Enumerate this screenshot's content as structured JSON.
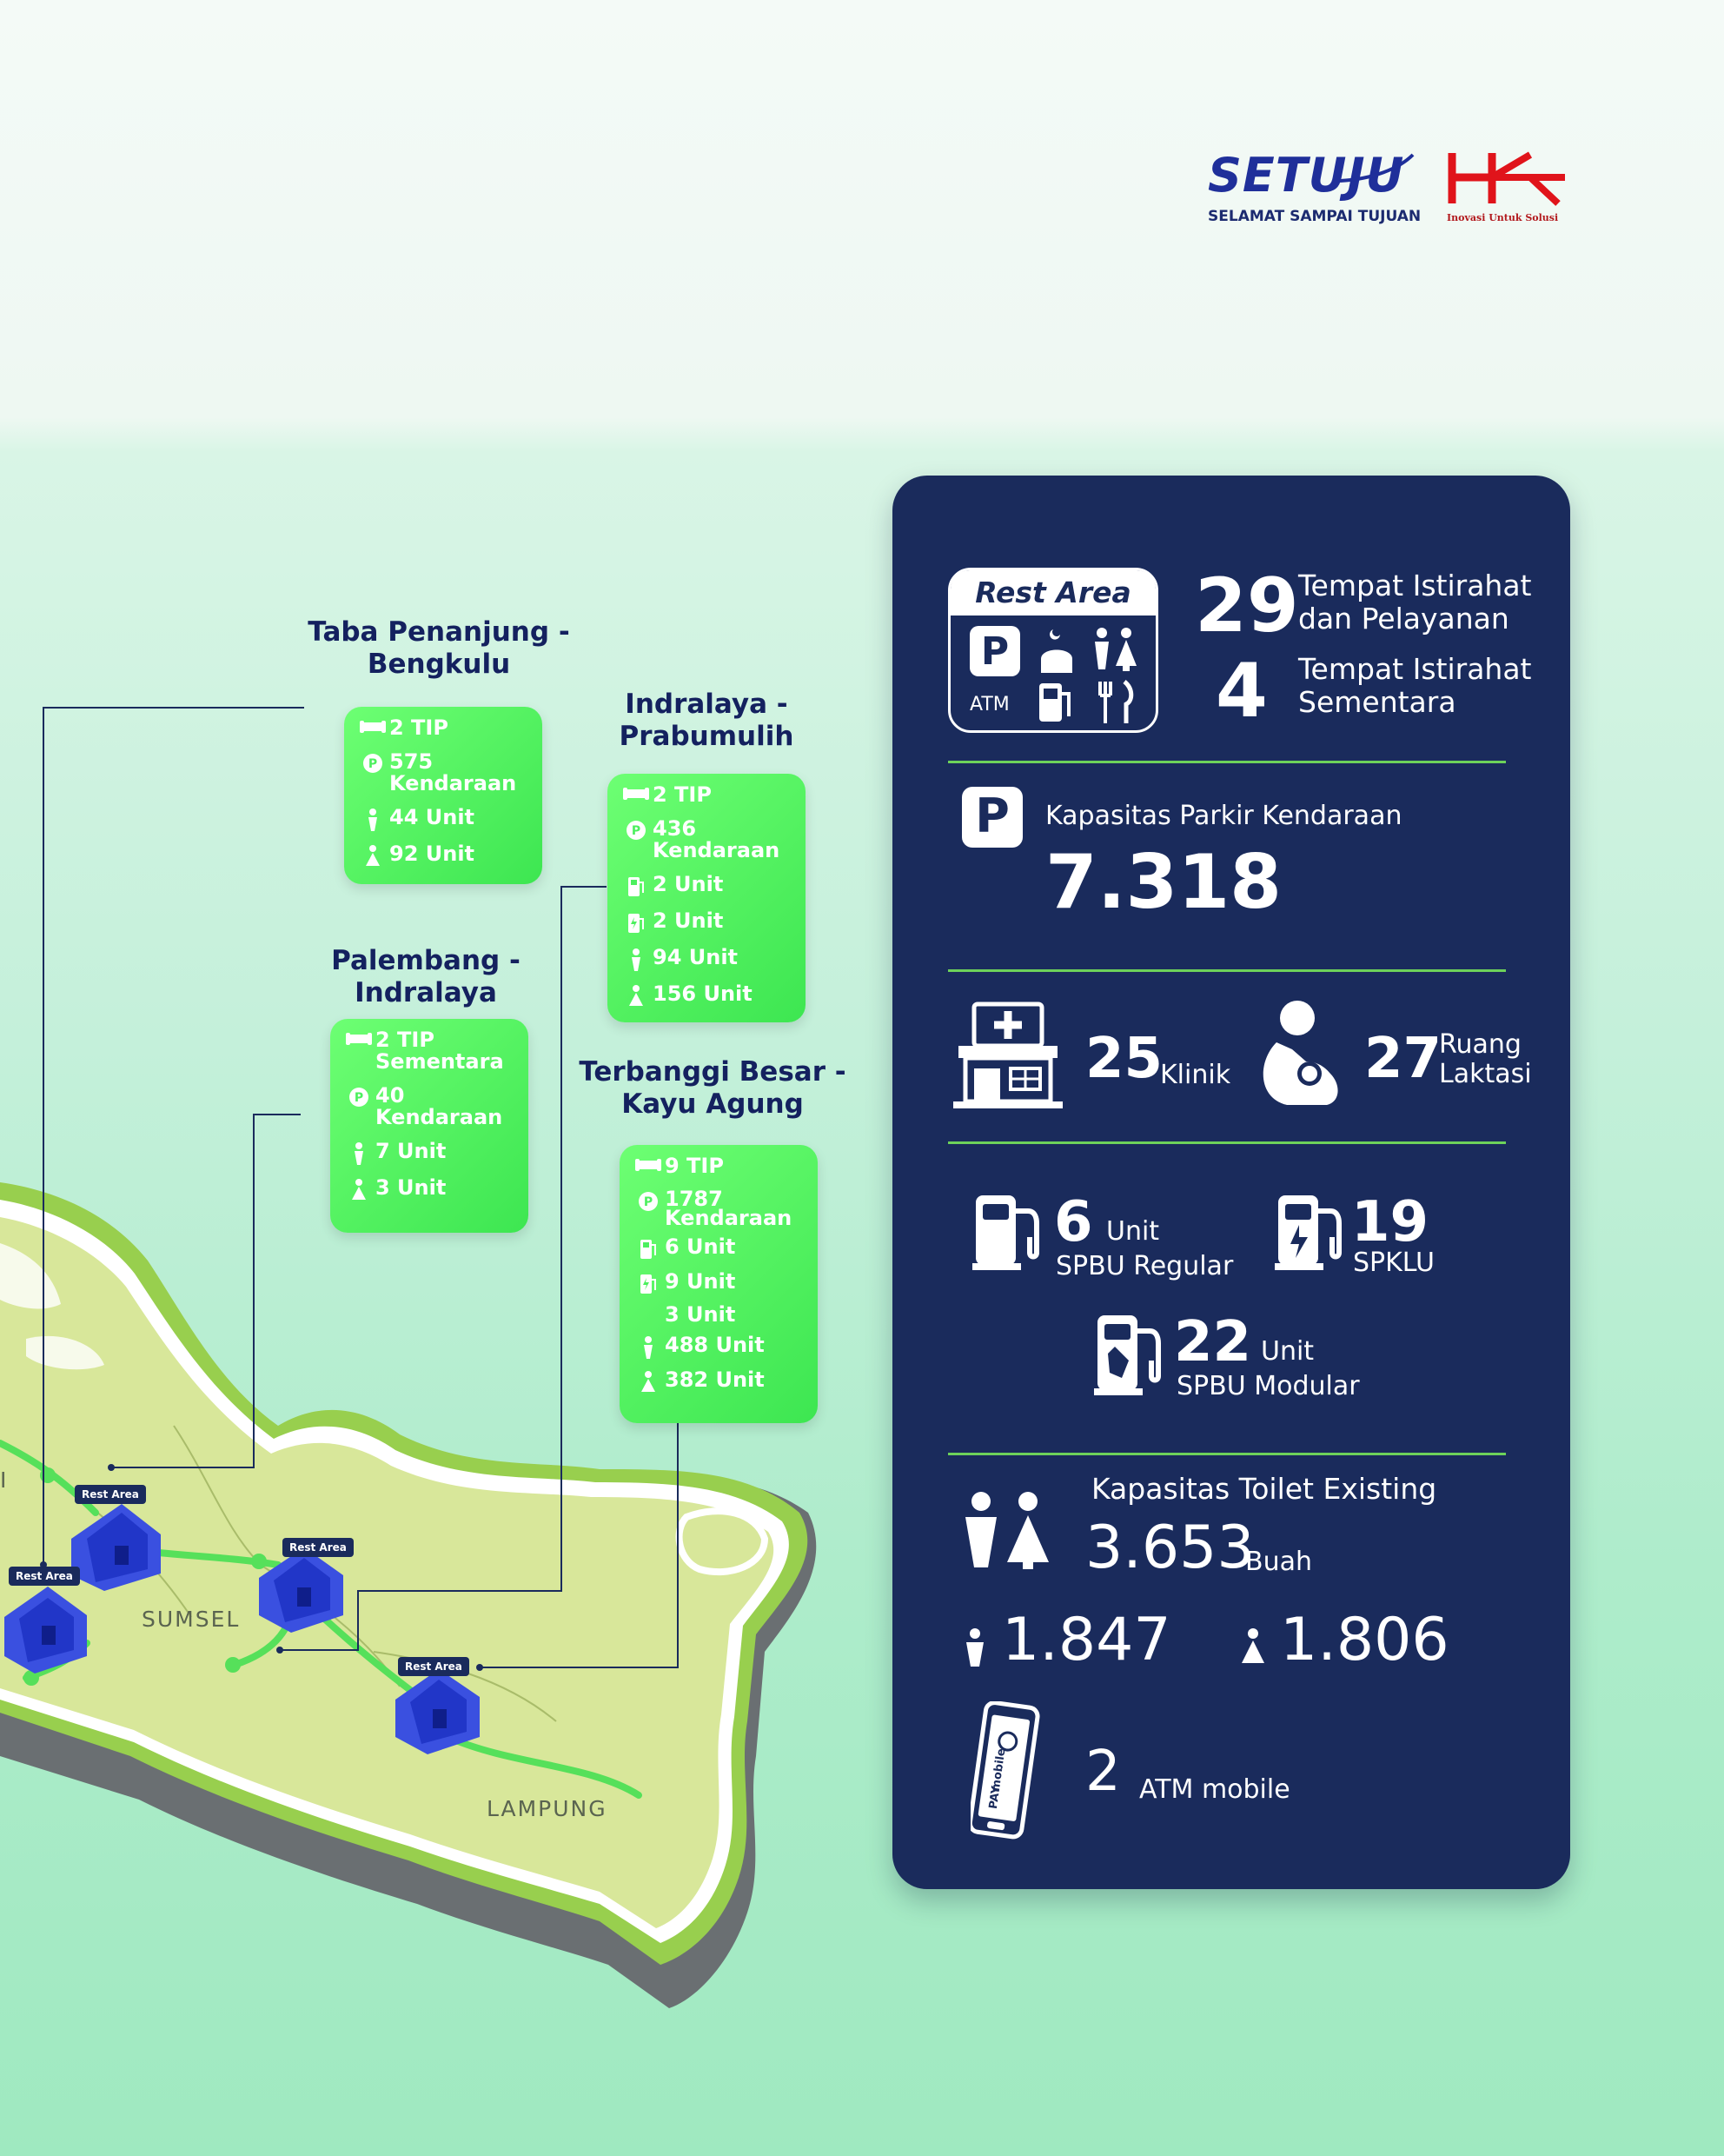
{
  "brand": {
    "setuju_word": "SETUJU",
    "setuju_tagline": "SELAMAT SAMPAI TUJUAN",
    "hk_tagline": "Inovasi Untuk Solusi",
    "setuju_color": "#1f2f9a",
    "hk_color": "#e0141b"
  },
  "callouts": {
    "taba": {
      "title_1": "Taba Penanjung -",
      "title_2": "Bengkulu",
      "rows": [
        {
          "icon": "sofa-icon",
          "text": "2 TIP"
        },
        {
          "icon": "parking-icon",
          "text": "575\nKendaraan"
        },
        {
          "icon": "male-toilet-icon",
          "text": "44 Unit"
        },
        {
          "icon": "female-toilet-icon",
          "text": "92 Unit"
        }
      ]
    },
    "indralaya_prabumulih": {
      "title_1": "Indralaya -",
      "title_2": "Prabumulih",
      "rows": [
        {
          "icon": "sofa-icon",
          "text": "2 TIP"
        },
        {
          "icon": "parking-icon",
          "text": "436\nKendaraan"
        },
        {
          "icon": "fuel-pump-icon",
          "text": "2 Unit"
        },
        {
          "icon": "ev-charger-icon",
          "text": "2 Unit"
        },
        {
          "icon": "male-toilet-icon",
          "text": "94 Unit"
        },
        {
          "icon": "female-toilet-icon",
          "text": "156 Unit"
        }
      ]
    },
    "palembang": {
      "title_1": "Palembang -",
      "title_2": "Indralaya",
      "rows": [
        {
          "icon": "sofa-icon",
          "text": "2 TIP\nSementara"
        },
        {
          "icon": "parking-icon",
          "text": "40\nKendaraan"
        },
        {
          "icon": "male-toilet-icon",
          "text": "7 Unit"
        },
        {
          "icon": "female-toilet-icon",
          "text": "3 Unit"
        }
      ]
    },
    "terbanggi": {
      "title_1": "Terbanggi Besar -",
      "title_2": "Kayu Agung",
      "rows": [
        {
          "icon": "sofa-icon",
          "text": "9 TIP"
        },
        {
          "icon": "parking-icon",
          "text": "1787\nKendaraan"
        },
        {
          "icon": "fuel-pump-icon",
          "text": "6 Unit"
        },
        {
          "icon": "ev-charger-icon",
          "text": "9 Unit"
        },
        {
          "icon": "",
          "text": "3 Unit"
        },
        {
          "icon": "male-toilet-icon",
          "text": "488 Unit"
        },
        {
          "icon": "female-toilet-icon",
          "text": "382 Unit"
        }
      ]
    }
  },
  "map": {
    "labels": {
      "sumsel": "SUMSEL",
      "lampung": "LAMPUNG",
      "edge": "I"
    },
    "rest_area_tag": "Rest Area"
  },
  "panel": {
    "rest_area_badge": {
      "title": "Rest Area",
      "atm": "ATM",
      "parking_letter": "P"
    },
    "tip_count": "29",
    "tip_label_1": "Tempat Istirahat",
    "tip_label_2": "dan Pelayanan",
    "tis_count": "4",
    "tis_label_1": "Tempat Istirahat",
    "tis_label_2": "Sementara",
    "parking_letter": "P",
    "parking_label": "Kapasitas Parkir Kendaraan",
    "parking_value": "7.318",
    "clinic_count": "25",
    "clinic_label": "Klinik",
    "lactation_count": "27",
    "lactation_label_1": "Ruang",
    "lactation_label_2": "Laktasi",
    "spbu_regular_count": "6",
    "spbu_regular_unit": "Unit",
    "spbu_regular_label": "SPBU Regular",
    "spklu_count": "19",
    "spklu_label": "SPKLU",
    "spbu_modular_count": "22",
    "spbu_modular_unit": "Unit",
    "spbu_modular_label": "SPBU Modular",
    "toilet_label": "Kapasitas Toilet Existing",
    "toilet_value": "3.653",
    "toilet_unit": "Buah",
    "toilet_male": "1.847",
    "toilet_female": "1.806",
    "atm_count": "2",
    "atm_label": "ATM mobile",
    "phone_text_1": "mobile",
    "phone_text_2": "PAY"
  },
  "colors": {
    "panel_bg": "#1a2b5c",
    "divider": "#6dd25a",
    "callout_green": "#4cf05e",
    "title_navy": "#14215f"
  }
}
